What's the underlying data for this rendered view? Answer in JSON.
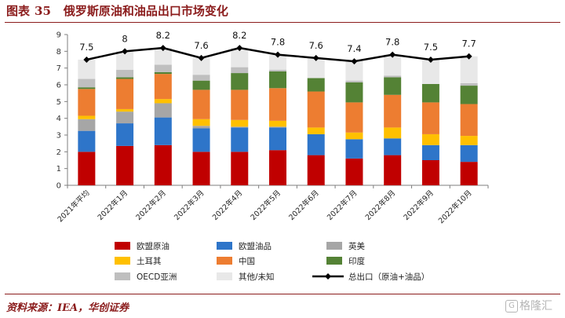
{
  "figure": {
    "label": "图表",
    "number": "35",
    "title": "俄罗斯原油和油品出口市场变化",
    "source": "资料来源：IEA，华创证券",
    "watermark_logo": "G",
    "watermark_text": "格隆汇"
  },
  "chart_data": {
    "type": "bar",
    "stacked": true,
    "title": "俄罗斯原油和油品出口市场变化",
    "xlabel": "",
    "ylabel": "",
    "ylim": [
      0,
      9
    ],
    "yticks": [
      0,
      1,
      2,
      3,
      4,
      5,
      6,
      7,
      8,
      9
    ],
    "categories": [
      "2021年平均",
      "2022年1月",
      "2022年2月",
      "2022年3月",
      "2022年4月",
      "2022年5月",
      "2022年6月",
      "2022年7月",
      "2022年8月",
      "2022年9月",
      "2022年10月"
    ],
    "series": [
      {
        "name": "欧盟原油",
        "color": "#c00000",
        "values": [
          2.0,
          2.35,
          2.4,
          2.0,
          2.0,
          2.1,
          1.8,
          1.6,
          1.8,
          1.5,
          1.4
        ]
      },
      {
        "name": "欧盟油品",
        "color": "#2e75c9",
        "values": [
          1.25,
          1.35,
          1.65,
          1.4,
          1.45,
          1.35,
          1.25,
          1.15,
          1.0,
          0.9,
          1.0
        ]
      },
      {
        "name": "英美",
        "color": "#a6a6a6",
        "values": [
          0.7,
          0.7,
          0.85,
          0.15,
          0.05,
          0.05,
          0.0,
          0.0,
          0.0,
          0.0,
          0.0
        ]
      },
      {
        "name": "土耳其",
        "color": "#ffc000",
        "values": [
          0.2,
          0.15,
          0.25,
          0.4,
          0.4,
          0.35,
          0.4,
          0.4,
          0.65,
          0.65,
          0.55
        ]
      },
      {
        "name": "中国",
        "color": "#ed7d31",
        "values": [
          1.6,
          1.8,
          1.5,
          1.75,
          1.8,
          1.95,
          2.15,
          1.8,
          1.95,
          1.9,
          1.9
        ]
      },
      {
        "name": "印度",
        "color": "#548235",
        "values": [
          0.1,
          0.1,
          0.1,
          0.55,
          1.0,
          1.0,
          0.8,
          1.2,
          1.05,
          1.1,
          1.1
        ]
      },
      {
        "name": "OECD亚洲",
        "color": "#bfbfbf",
        "values": [
          0.5,
          0.45,
          0.45,
          0.35,
          0.35,
          0.1,
          0.0,
          0.1,
          0.1,
          0.0,
          0.15
        ]
      },
      {
        "name": "其他/未知",
        "color": "#e8e8e8",
        "values": [
          1.15,
          1.1,
          1.0,
          1.0,
          1.15,
          0.9,
          1.2,
          1.15,
          1.25,
          1.45,
          1.6
        ]
      }
    ],
    "line": {
      "name": "总出口（原油+油品）",
      "color": "#000000",
      "values": [
        7.5,
        8,
        8.2,
        7.6,
        8.2,
        7.8,
        7.6,
        7.4,
        7.8,
        7.5,
        7.7
      ],
      "labels": [
        "7.5",
        "8",
        "8.2",
        "7.6",
        "8.2",
        "7.8",
        "7.6",
        "7.4",
        "7.8",
        "7.5",
        "7.7"
      ]
    },
    "legend_position": "bottom",
    "grid": false
  }
}
